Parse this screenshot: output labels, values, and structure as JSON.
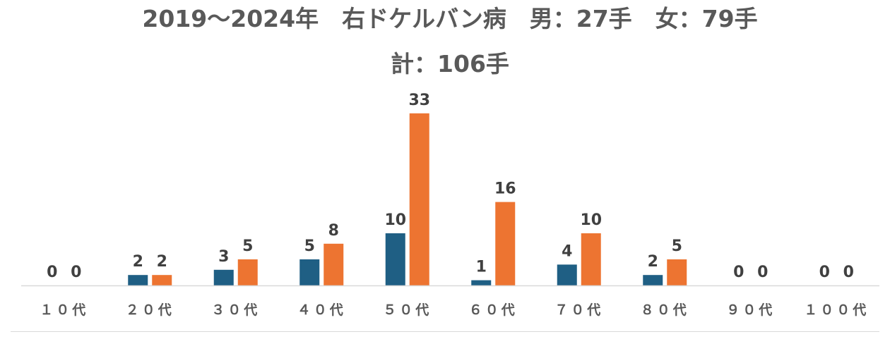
{
  "chart_data": {
    "type": "bar",
    "title_line1": "2019〜2024年　右ドケルバン病　男：27手　女：79手",
    "title_line2": "計：106手",
    "xlabel": "",
    "ylabel": "",
    "ylim": [
      0,
      34
    ],
    "grid": false,
    "legend": "none",
    "categories": [
      "１０代",
      "２０代",
      "３０代",
      "４０代",
      "５０代",
      "６０代",
      "７０代",
      "８０代",
      "９０代",
      "１００代"
    ],
    "series": [
      {
        "color": "#1f5f84",
        "values": [
          0,
          2,
          3,
          5,
          10,
          1,
          4,
          2,
          0,
          0
        ]
      },
      {
        "color": "#ed7431",
        "values": [
          0,
          2,
          5,
          8,
          33,
          16,
          10,
          5,
          0,
          0
        ]
      }
    ]
  }
}
